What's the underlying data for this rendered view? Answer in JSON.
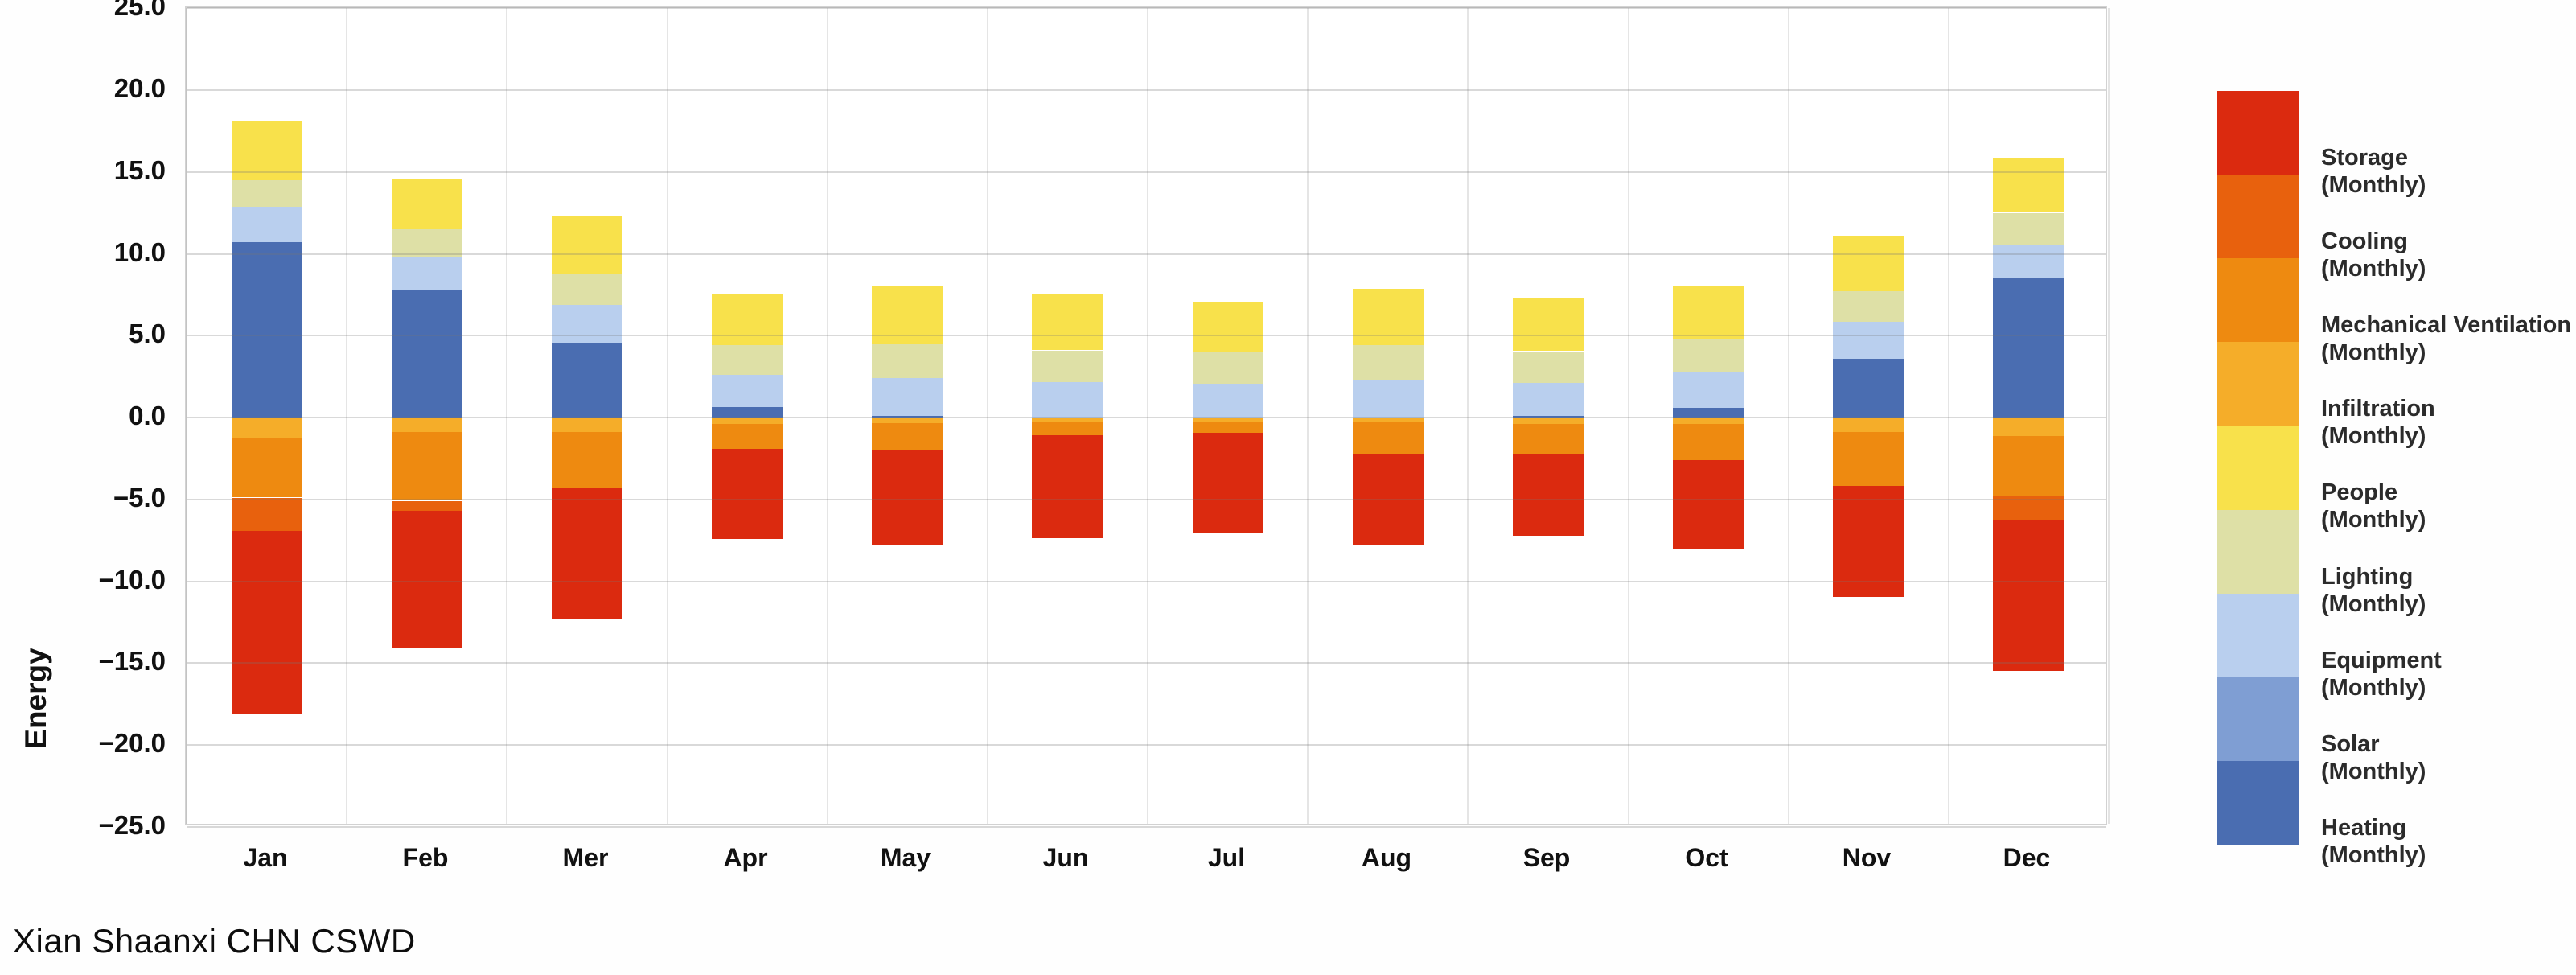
{
  "title": "Xian Shaanxi CHN CSWD",
  "y_axis": {
    "label": "Energy",
    "min": -25,
    "max": 25,
    "step": 5,
    "tick_labels": [
      "25.0",
      "20.0",
      "15.0",
      "10.0",
      "5.0",
      "0.0",
      "−5.0",
      "−10.0",
      "−15.0",
      "−20.0",
      "−25.0"
    ]
  },
  "legend": [
    {
      "id": "storage",
      "label": "Storage",
      "sublabel": "(Monthly)",
      "color": "#db2a0f"
    },
    {
      "id": "cooling",
      "label": "Cooling",
      "sublabel": "(Monthly)",
      "color": "#e8610d"
    },
    {
      "id": "mech_vent",
      "label": "Mechanical Ventilation",
      "sublabel": "(Monthly)",
      "color": "#ee8a10"
    },
    {
      "id": "infiltration",
      "label": "Infiltration",
      "sublabel": "(Monthly)",
      "color": "#f5ad29"
    },
    {
      "id": "people",
      "label": "People",
      "sublabel": "(Monthly)",
      "color": "#f8e14b"
    },
    {
      "id": "lighting",
      "label": "Lighting",
      "sublabel": "(Monthly)",
      "color": "#dee0a6"
    },
    {
      "id": "equipment",
      "label": "Equipment",
      "sublabel": "(Monthly)",
      "color": "#b9cfee"
    },
    {
      "id": "solar",
      "label": "Solar",
      "sublabel": "(Monthly)",
      "color": "#7f9ed3"
    },
    {
      "id": "heating",
      "label": "Heating",
      "sublabel": "(Monthly)",
      "color": "#4a6db1"
    }
  ],
  "chart_data": {
    "type": "bar",
    "stacked": true,
    "grid": true,
    "legend_position": "right",
    "title": "Xian Shaanxi CHN CSWD",
    "ylabel": "Energy",
    "ylim": [
      -25,
      25
    ],
    "ytick_step": 5,
    "categories": [
      "Jan",
      "Feb",
      "Mer",
      "Apr",
      "May",
      "Jun",
      "Jul",
      "Aug",
      "Sep",
      "Oct",
      "Nov",
      "Dec"
    ],
    "series": [
      {
        "id": "storage",
        "name": "Storage (Monthly)",
        "color": "#db2a0f",
        "values": [
          -11.15,
          -8.4,
          -8.0,
          -5.5,
          -5.85,
          -6.3,
          -6.15,
          -5.6,
          -5.0,
          -5.4,
          -6.8,
          -9.2
        ]
      },
      {
        "id": "cooling",
        "name": "Cooling (Monthly)",
        "color": "#e8610d",
        "values": [
          -2.05,
          -0.6,
          0,
          0,
          0,
          0,
          0,
          0,
          0,
          0,
          0,
          -1.5
        ]
      },
      {
        "id": "mech_vent",
        "name": "Mechanical Ventilation (Monthly)",
        "color": "#ee8a10",
        "values": [
          -3.6,
          -4.2,
          -3.4,
          -1.5,
          -1.6,
          -0.85,
          -0.65,
          -1.9,
          -1.8,
          -2.2,
          -3.3,
          -3.65
        ]
      },
      {
        "id": "infiltration",
        "name": "Infiltration (Monthly)",
        "color": "#f5ad29",
        "values": [
          -1.3,
          -0.9,
          -0.9,
          -0.4,
          -0.35,
          -0.25,
          -0.3,
          -0.3,
          -0.4,
          -0.4,
          -0.9,
          -1.15
        ]
      },
      {
        "id": "people",
        "name": "People (Monthly)",
        "color": "#f8e14b",
        "values": [
          3.6,
          3.1,
          3.5,
          3.1,
          3.5,
          3.4,
          3.05,
          3.45,
          3.25,
          3.25,
          3.4,
          3.3
        ]
      },
      {
        "id": "lighting",
        "name": "Lighting (Monthly)",
        "color": "#dee0a6",
        "values": [
          1.6,
          1.7,
          1.9,
          1.8,
          2.1,
          1.9,
          1.95,
          2.1,
          1.9,
          2.0,
          1.85,
          1.9
        ]
      },
      {
        "id": "equipment",
        "name": "Equipment (Monthly)",
        "color": "#b9cfee",
        "values": [
          2.2,
          2.0,
          2.3,
          1.95,
          2.3,
          2.2,
          2.1,
          2.3,
          2.05,
          2.2,
          2.25,
          2.1
        ]
      },
      {
        "id": "solar",
        "name": "Solar (Monthly)",
        "color": "#7f9ed3",
        "values": [
          0,
          0,
          0,
          0,
          0,
          0,
          0,
          0,
          0,
          0,
          0,
          0
        ]
      },
      {
        "id": "heating",
        "name": "Heating (Monthly)",
        "color": "#4a6db1",
        "values": [
          10.7,
          7.8,
          4.6,
          0.65,
          0.1,
          0,
          0,
          0,
          0.1,
          0.6,
          3.6,
          8.5
        ]
      }
    ],
    "positive_stack_order_bottom_to_top": [
      "heating",
      "solar",
      "equipment",
      "lighting",
      "people"
    ],
    "negative_stack_order_from_zero": [
      "infiltration",
      "mech_vent",
      "cooling",
      "storage"
    ]
  }
}
